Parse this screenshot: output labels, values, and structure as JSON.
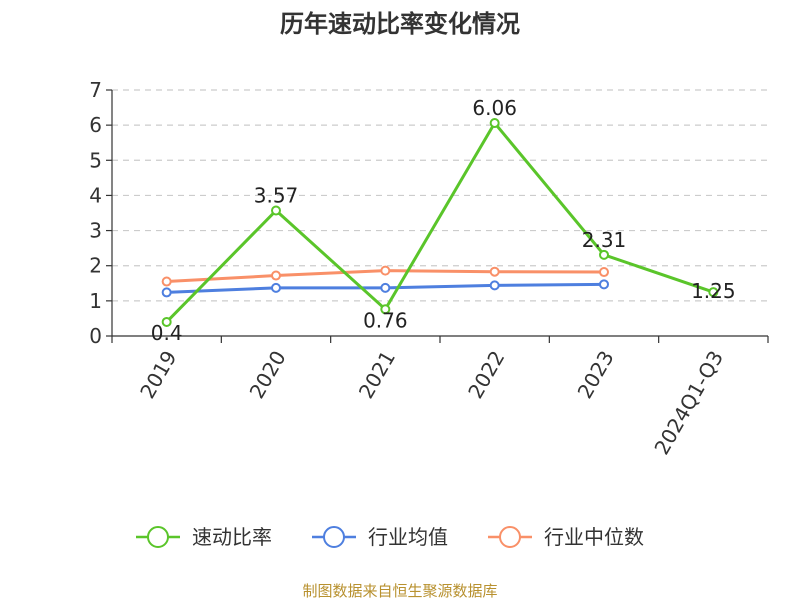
{
  "chart_data": {
    "type": "line",
    "title": "历年速动比率变化情况",
    "categories": [
      "2019",
      "2020",
      "2021",
      "2022",
      "2023",
      "2024Q1-Q3"
    ],
    "ylim": [
      0,
      7
    ],
    "yticks": [
      0,
      1,
      2,
      3,
      4,
      5,
      6,
      7
    ],
    "grid": true,
    "legend_position": "bottom",
    "series": [
      {
        "name": "速动比率",
        "values": [
          0.4,
          3.57,
          0.76,
          6.06,
          2.31,
          1.25
        ],
        "labels": [
          "0.4",
          "3.57",
          "0.76",
          "6.06",
          "2.31",
          "1.25"
        ],
        "color": "#5ac52a"
      },
      {
        "name": "行业均值",
        "values": [
          1.24,
          1.37,
          1.37,
          1.44,
          1.47,
          null
        ],
        "color": "#4e7fdf"
      },
      {
        "name": "行业中位数",
        "values": [
          1.55,
          1.72,
          1.86,
          1.83,
          1.82,
          null
        ],
        "color": "#f99068"
      }
    ]
  },
  "source": {
    "text": "制图数据来自恒生聚源数据库",
    "color": "#b8912f"
  }
}
